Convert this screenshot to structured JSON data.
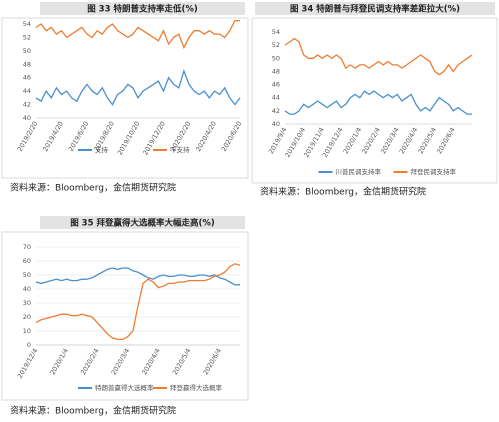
{
  "chart_data": [
    {
      "type": "line",
      "title": "图 33 特朗普支持率走低(%)",
      "source": "资料来源：Bloomberg，金信期货研究院",
      "categories": [
        "2019/2/20",
        null,
        null,
        null,
        null,
        "2019/4/20",
        null,
        null,
        null,
        null,
        "2019/6/20",
        null,
        null,
        null,
        null,
        "2019/8/20",
        null,
        null,
        null,
        null,
        "2019/10/20",
        null,
        null,
        null,
        null,
        "2019/12/20",
        null,
        null,
        null,
        null,
        "2020/2/20",
        null,
        null,
        null,
        null,
        "2020/4/20",
        null,
        null,
        null,
        null,
        "2020/6/20"
      ],
      "ylim": [
        40,
        54
      ],
      "yticks": [
        40,
        42,
        44,
        46,
        48,
        50,
        52,
        54
      ],
      "grid": false,
      "series": [
        {
          "name": "支持",
          "color": "#4a90d0",
          "values": [
            43,
            42.5,
            44,
            43,
            44.5,
            43.5,
            44,
            43,
            42.5,
            44,
            45,
            44,
            43.5,
            44.5,
            43,
            42,
            43.5,
            44,
            45,
            44.5,
            43,
            44,
            44.5,
            45,
            45.5,
            44,
            46,
            45,
            44.5,
            47,
            45,
            44,
            43.5,
            44,
            43,
            44,
            43.5,
            44.5,
            43,
            42,
            43
          ]
        },
        {
          "name": "不支持",
          "color": "#ee7d31",
          "values": [
            53.5,
            54,
            53,
            53.5,
            52.5,
            53,
            52,
            52.5,
            53,
            53.5,
            52.5,
            52,
            53,
            52.5,
            53.5,
            54,
            53,
            52.5,
            52,
            52.5,
            53.5,
            53,
            52.5,
            52,
            51.5,
            53,
            51,
            52,
            52.5,
            50.5,
            52,
            53,
            53,
            52.5,
            53,
            52.5,
            52.5,
            52,
            53,
            54.5,
            54.5
          ]
        }
      ]
    },
    {
      "type": "line",
      "title": "图 34 特朗普与拜登民调支持率差距拉大(%)",
      "source": "资料来源：Bloomberg，金信期货研究院",
      "categories": [
        "2019/9/4",
        null,
        null,
        null,
        "2019/10/4",
        null,
        null,
        null,
        "2019/11/4",
        null,
        null,
        null,
        "2019/12/4",
        null,
        null,
        null,
        "2020/1/4",
        null,
        null,
        null,
        "2020/2/4",
        null,
        null,
        null,
        "2020/3/4",
        null,
        null,
        null,
        "2020/4/4",
        null,
        null,
        null,
        "2020/5/4",
        null,
        null,
        null,
        "2020/6/4",
        null,
        null,
        null,
        null
      ],
      "ylim": [
        40,
        54
      ],
      "yticks": [
        40,
        42,
        44,
        46,
        48,
        50,
        52,
        54
      ],
      "grid": false,
      "series": [
        {
          "name": "川普民调支持率",
          "color": "#4a90d0",
          "values": [
            42,
            41.5,
            41.5,
            42,
            43,
            42.5,
            43,
            43.5,
            43,
            42.5,
            43,
            43.5,
            42.5,
            43,
            44,
            44.5,
            44,
            45,
            44.5,
            45,
            44.5,
            44,
            44.5,
            44,
            44.5,
            43.5,
            44,
            44.5,
            43,
            42,
            42.5,
            42,
            43,
            44,
            43.5,
            43,
            42,
            42.5,
            42,
            41.5,
            41.5
          ]
        },
        {
          "name": "拜登民调支持率",
          "color": "#ee7d31",
          "values": [
            52,
            52.5,
            53,
            52.5,
            50.5,
            50,
            50,
            50.5,
            50,
            50.5,
            50,
            50.5,
            50,
            48.5,
            49,
            48.5,
            49,
            49,
            48.5,
            49,
            49.5,
            49,
            49.5,
            49,
            49,
            48.5,
            49,
            49.5,
            50,
            50.5,
            50,
            49.5,
            48,
            47.5,
            48,
            49,
            48,
            49,
            49.5,
            50,
            50.5
          ]
        }
      ]
    },
    {
      "type": "line",
      "title": "图 35 拜登赢得大选概率大幅走高(%)",
      "source": "资料来源：Bloomberg，金信期货研究院",
      "categories": [
        "2019/12/4",
        null,
        null,
        null,
        null,
        null,
        "2020/1/4",
        null,
        null,
        null,
        null,
        null,
        "2020/2/4",
        null,
        null,
        null,
        null,
        null,
        "2020/3/4",
        null,
        null,
        null,
        null,
        null,
        "2020/4/4",
        null,
        null,
        null,
        null,
        null,
        "2020/5/4",
        null,
        null,
        null,
        null,
        null,
        "2020/6/4",
        null,
        null,
        null,
        null
      ],
      "ylim": [
        0,
        70
      ],
      "yticks": [
        0,
        10,
        20,
        30,
        40,
        50,
        60,
        70
      ],
      "grid": true,
      "series": [
        {
          "name": "特朗普赢得大选概率",
          "color": "#4a90d0",
          "values": [
            45,
            44,
            45,
            46,
            47,
            46,
            47,
            46,
            46,
            47,
            47,
            48,
            50,
            52,
            54,
            55,
            54,
            55,
            55,
            53,
            52,
            50,
            48,
            47,
            49,
            50,
            49,
            49,
            50,
            50,
            49,
            49,
            50,
            50,
            49,
            50,
            48,
            47,
            45,
            43,
            43
          ]
        },
        {
          "name": "拜登赢得大选概率",
          "color": "#ee7d31",
          "values": [
            16,
            18,
            19,
            20,
            21,
            22,
            22,
            21,
            21,
            22,
            21,
            20,
            16,
            12,
            8,
            5,
            4,
            4,
            6,
            10,
            28,
            44,
            47,
            45,
            41,
            42,
            44,
            44,
            45,
            45,
            46,
            46,
            46,
            46,
            47,
            49,
            50,
            52,
            56,
            58,
            57
          ]
        }
      ]
    }
  ]
}
